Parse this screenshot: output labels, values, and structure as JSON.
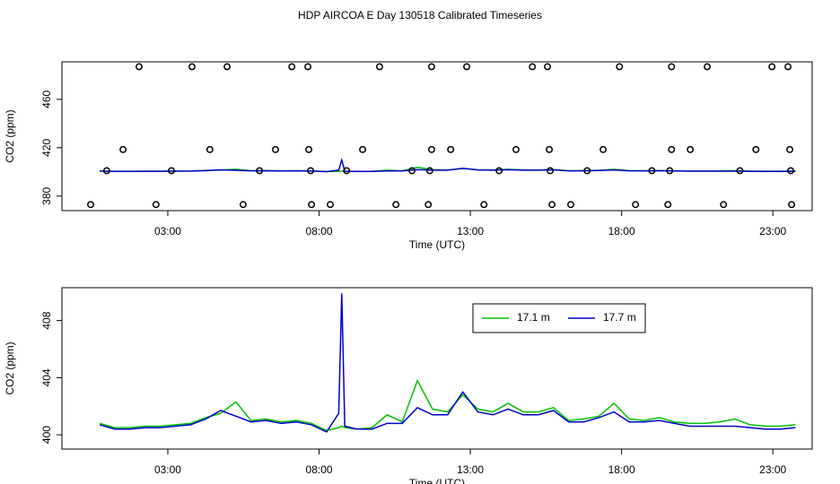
{
  "title": "HDP AIRCOA E  Day 130518  Calibrated Timeseries",
  "chart_data": [
    {
      "type": "line",
      "ylabel": "CO2 (ppm)",
      "xlabel": "Time (UTC)",
      "xlim": [
        -0.5,
        24.3
      ],
      "ylim": [
        368,
        491
      ],
      "xticks": [
        {
          "value": 3,
          "label": "03:00"
        },
        {
          "value": 8,
          "label": "08:00"
        },
        {
          "value": 13,
          "label": "13:00"
        },
        {
          "value": 18,
          "label": "18:00"
        },
        {
          "value": 23,
          "label": "23:00"
        }
      ],
      "yticks": [
        380,
        420,
        460
      ],
      "x": [
        0.75,
        1.25,
        1.75,
        2.25,
        2.75,
        3.25,
        3.75,
        4.25,
        4.75,
        5.25,
        5.75,
        6.25,
        6.75,
        7.25,
        7.75,
        8.25,
        8.65,
        8.75,
        8.85,
        9.25,
        9.75,
        10.25,
        10.75,
        11.25,
        11.75,
        12.25,
        12.75,
        13.25,
        13.75,
        14.25,
        14.75,
        15.25,
        15.75,
        16.25,
        16.75,
        17.25,
        17.75,
        18.25,
        18.75,
        19.25,
        19.75,
        20.25,
        20.75,
        21.25,
        21.75,
        22.25,
        22.75,
        23.25,
        23.75
      ],
      "series": [
        {
          "color": "#00c000",
          "values": [
            400.8,
            400.5,
            400.5,
            400.6,
            400.6,
            400.7,
            400.8,
            401.2,
            401.5,
            402.3,
            401.0,
            401.1,
            400.9,
            401.0,
            400.8,
            400.3,
            400.5,
            400.6,
            400.5,
            400.4,
            400.5,
            401.4,
            400.9,
            403.8,
            401.8,
            401.6,
            402.8,
            401.8,
            401.6,
            402.2,
            401.6,
            401.6,
            401.9,
            401.0,
            401.1,
            401.3,
            402.2,
            401.1,
            401.0,
            401.2,
            400.9,
            400.8,
            400.8,
            400.9,
            401.1,
            400.7,
            400.6,
            400.6,
            400.7
          ]
        },
        {
          "color": "#0000cc",
          "values": [
            400.7,
            400.4,
            400.4,
            400.5,
            400.5,
            400.6,
            400.7,
            401.1,
            401.7,
            401.3,
            400.9,
            401.0,
            400.8,
            400.9,
            400.7,
            400.2,
            401.5,
            409.9,
            400.6,
            400.4,
            400.4,
            400.8,
            400.8,
            401.9,
            401.4,
            401.4,
            403.0,
            401.6,
            401.4,
            401.8,
            401.4,
            401.4,
            401.7,
            400.9,
            400.9,
            401.2,
            401.6,
            400.9,
            400.9,
            401.0,
            400.8,
            400.6,
            400.6,
            400.6,
            400.6,
            400.5,
            400.4,
            400.4,
            400.5
          ]
        }
      ],
      "points": {
        "x": [
          2.05,
          3.8,
          4.96,
          7.1,
          7.63,
          10.0,
          11.72,
          12.88,
          15.05,
          15.55,
          17.93,
          19.65,
          20.83,
          22.97,
          23.5,
          1.52,
          4.39,
          6.56,
          7.66,
          9.44,
          11.72,
          12.35,
          14.51,
          15.61,
          17.39,
          19.65,
          20.27,
          22.44,
          23.56,
          0.98,
          3.12,
          6.03,
          7.72,
          8.91,
          11.07,
          11.66,
          13.95,
          15.64,
          16.86,
          19.0,
          19.59,
          21.91,
          23.59,
          0.45,
          2.61,
          5.49,
          7.75,
          8.37,
          10.54,
          11.61,
          13.45,
          15.7,
          16.32,
          18.46,
          19.53,
          21.37,
          23.62
        ],
        "values": [
          487,
          487,
          487,
          487,
          487,
          487,
          487,
          487,
          487,
          487,
          487,
          487,
          487,
          487,
          487,
          418.5,
          418.5,
          418.5,
          418.5,
          418.5,
          418.5,
          418.5,
          418.5,
          418.5,
          418.5,
          418.5,
          418.5,
          418.5,
          418.5,
          401,
          401,
          401,
          401,
          401,
          401,
          401,
          401,
          401,
          401,
          401,
          401,
          401,
          401,
          373,
          373,
          373,
          373,
          373,
          373,
          373,
          373,
          373,
          373,
          373,
          373,
          373,
          373
        ]
      }
    },
    {
      "type": "line",
      "ylabel": "CO2 (ppm)",
      "xlabel": "Time (UTC)",
      "xlim": [
        -0.5,
        24.3
      ],
      "ylim": [
        399,
        410.3
      ],
      "xticks": [
        {
          "value": 3,
          "label": "03:00"
        },
        {
          "value": 8,
          "label": "08:00"
        },
        {
          "value": 13,
          "label": "13:00"
        },
        {
          "value": 18,
          "label": "18:00"
        },
        {
          "value": 23,
          "label": "23:00"
        }
      ],
      "yticks": [
        400,
        404,
        408
      ],
      "legend": "top-right",
      "x": [
        0.75,
        1.25,
        1.75,
        2.25,
        2.75,
        3.25,
        3.75,
        4.25,
        4.75,
        5.25,
        5.75,
        6.25,
        6.75,
        7.25,
        7.75,
        8.25,
        8.65,
        8.75,
        8.85,
        9.25,
        9.75,
        10.25,
        10.75,
        11.25,
        11.75,
        12.25,
        12.75,
        13.25,
        13.75,
        14.25,
        14.75,
        15.25,
        15.75,
        16.25,
        16.75,
        17.25,
        17.75,
        18.25,
        18.75,
        19.25,
        19.75,
        20.25,
        20.75,
        21.25,
        21.75,
        22.25,
        22.75,
        23.25,
        23.75
      ],
      "series": [
        {
          "name": "17.1 m",
          "color": "#00c000",
          "values": [
            400.8,
            400.5,
            400.5,
            400.6,
            400.6,
            400.7,
            400.8,
            401.2,
            401.5,
            402.3,
            401.0,
            401.1,
            400.9,
            401.0,
            400.8,
            400.3,
            400.5,
            400.6,
            400.5,
            400.4,
            400.5,
            401.4,
            400.9,
            403.8,
            401.8,
            401.6,
            402.8,
            401.8,
            401.6,
            402.2,
            401.6,
            401.6,
            401.9,
            401.0,
            401.1,
            401.3,
            402.2,
            401.1,
            401.0,
            401.2,
            400.9,
            400.8,
            400.8,
            400.9,
            401.1,
            400.7,
            400.6,
            400.6,
            400.7
          ]
        },
        {
          "name": "17.7 m",
          "color": "#0000cc",
          "values": [
            400.7,
            400.4,
            400.4,
            400.5,
            400.5,
            400.6,
            400.7,
            401.1,
            401.7,
            401.3,
            400.9,
            401.0,
            400.8,
            400.9,
            400.7,
            400.2,
            401.5,
            409.9,
            400.6,
            400.4,
            400.4,
            400.8,
            400.8,
            401.9,
            401.4,
            401.4,
            403.0,
            401.6,
            401.4,
            401.8,
            401.4,
            401.4,
            401.7,
            400.9,
            400.9,
            401.2,
            401.6,
            400.9,
            400.9,
            401.0,
            400.8,
            400.6,
            400.6,
            400.6,
            400.6,
            400.5,
            400.4,
            400.4,
            400.5
          ]
        }
      ]
    }
  ]
}
